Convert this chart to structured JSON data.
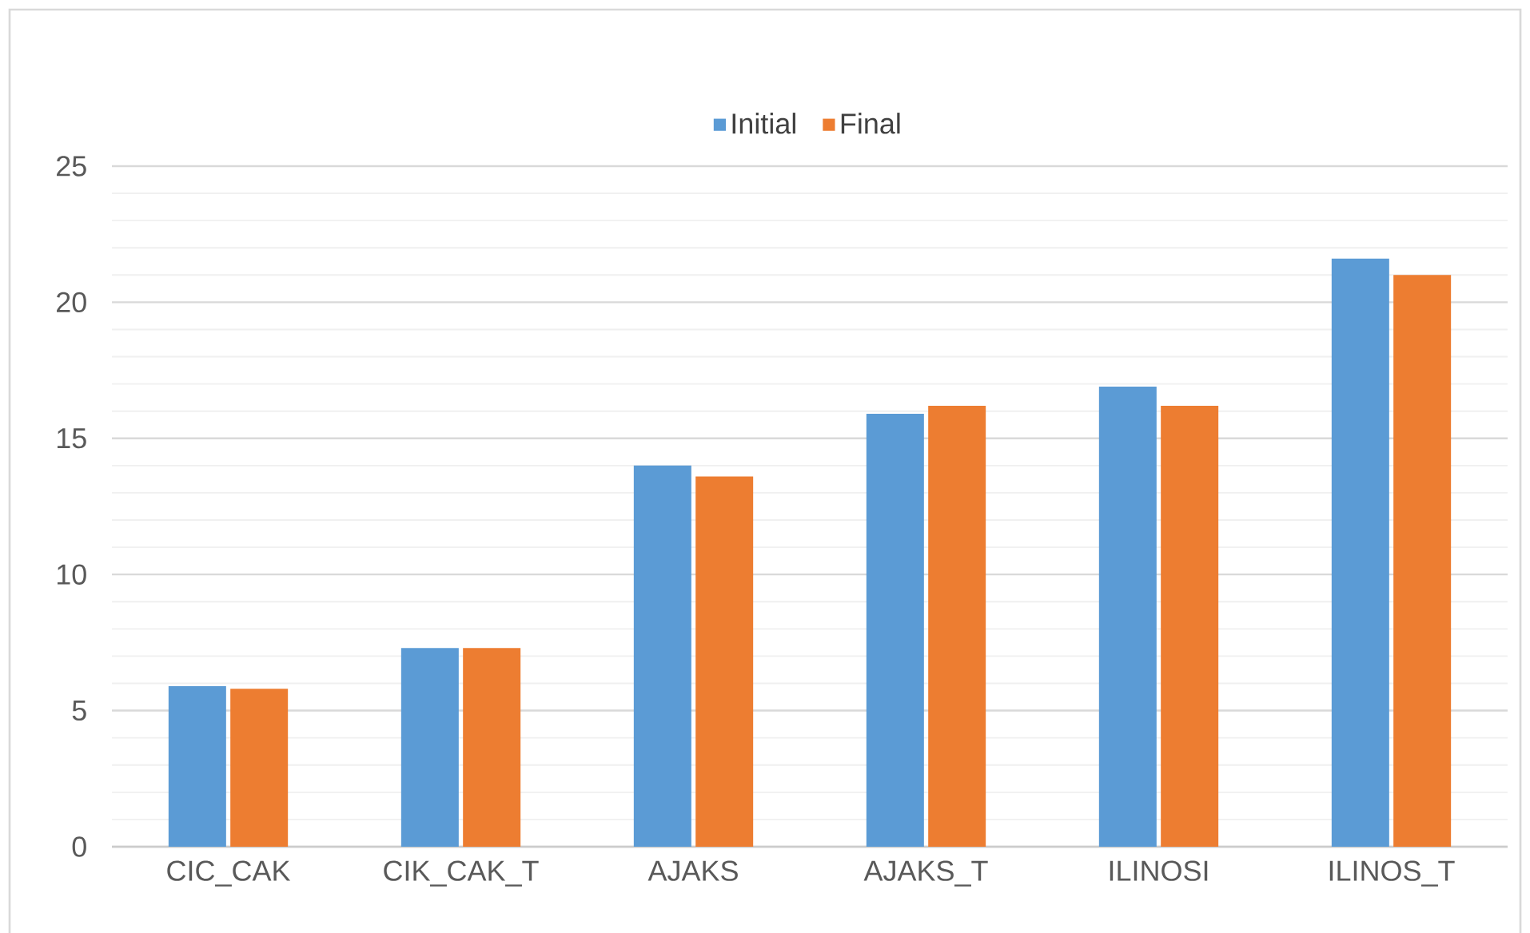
{
  "chart_data": {
    "type": "bar",
    "categories": [
      "CIC_CAK",
      "CIK_CAK_T",
      "AJAKS",
      "AJAKS_T",
      "ILINOSI",
      "ILINOS_T"
    ],
    "series": [
      {
        "name": "Initial",
        "color": "#5b9bd5",
        "values": [
          5.9,
          7.3,
          14.0,
          15.9,
          16.9,
          21.6
        ]
      },
      {
        "name": "Final",
        "color": "#ed7d31",
        "values": [
          5.8,
          7.3,
          13.6,
          16.2,
          16.2,
          21.0
        ]
      }
    ],
    "ylim": [
      0,
      25
    ],
    "yticks": [
      0,
      5,
      10,
      15,
      20,
      25
    ],
    "grid": "y",
    "legend": "top"
  }
}
